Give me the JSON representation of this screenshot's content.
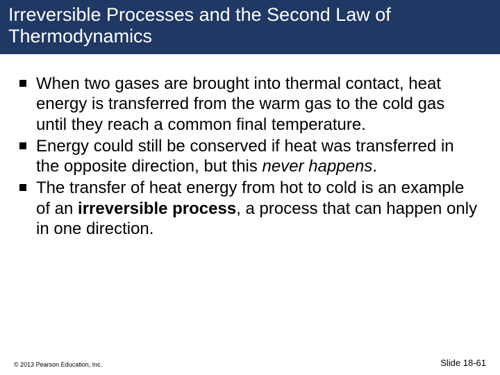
{
  "title": "Irreversible Processes and the Second Law of Thermodynamics",
  "title_bar": {
    "background": "#1f3864",
    "text_color": "#ffffff",
    "fontsize": 27
  },
  "body": {
    "fontsize": 24,
    "bullet_style": "square",
    "bullet_color": "#000000",
    "items": [
      {
        "runs": [
          {
            "text": "When two gases are brought into thermal contact, heat energy is transferred from the warm gas to the cold gas until they reach a common final temperature."
          }
        ]
      },
      {
        "runs": [
          {
            "text": "Energy could still be conserved if heat was transferred in the opposite direction, but this "
          },
          {
            "text": "never happens",
            "italic": true
          },
          {
            "text": "."
          }
        ]
      },
      {
        "runs": [
          {
            "text": "The transfer of heat energy from hot to cold is an example of an "
          },
          {
            "text": "irreversible process",
            "bold": true
          },
          {
            "text": ", a process that can happen only in one direction."
          }
        ]
      }
    ]
  },
  "footer": {
    "copyright": "© 2013 Pearson Education, Inc.",
    "slide_number": "Slide 18-61"
  }
}
